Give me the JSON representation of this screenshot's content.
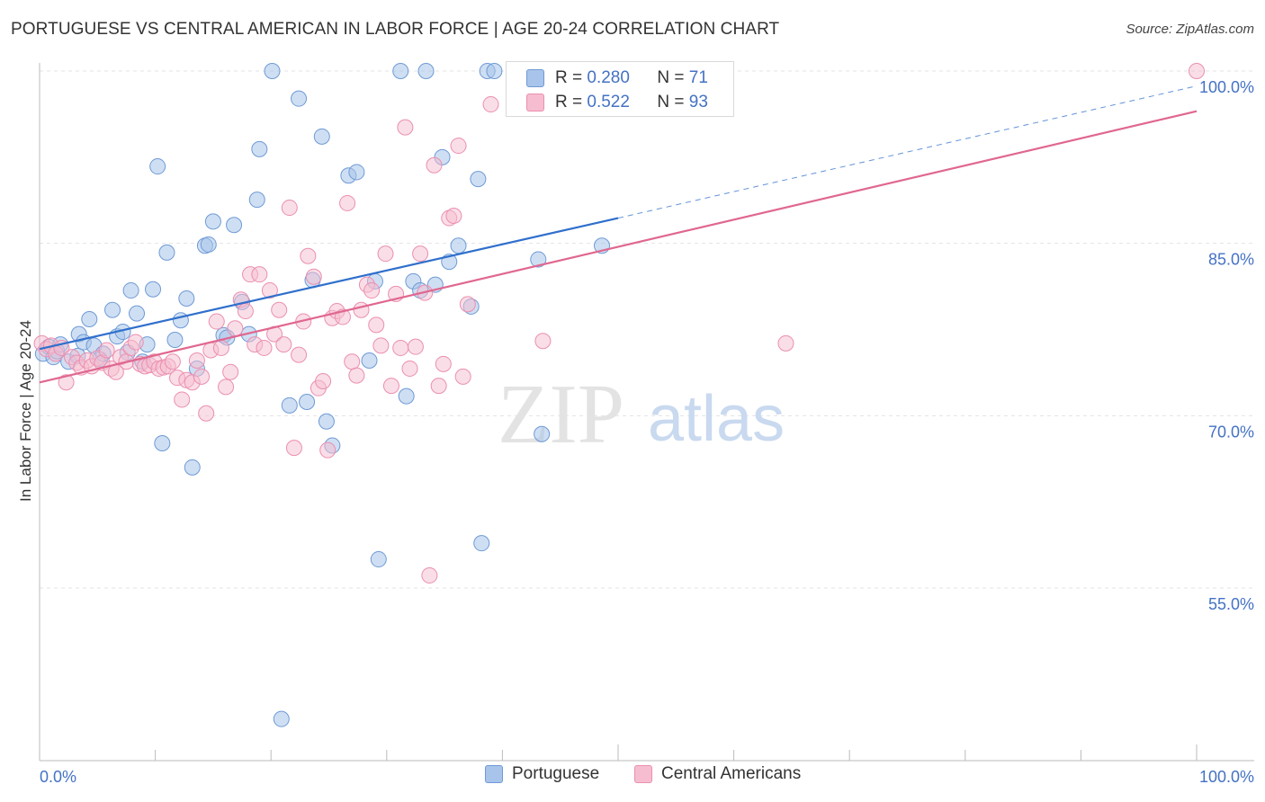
{
  "title": "PORTUGUESE VS CENTRAL AMERICAN IN LABOR FORCE | AGE 20-24 CORRELATION CHART",
  "source": "Source: ZipAtlas.com",
  "watermark": {
    "zip": "ZIP",
    "atlas": "atlas"
  },
  "colors": {
    "blue_fill": "#a8c4ea",
    "blue_stroke": "#6f9ad6",
    "blue_line": "#2f6fcc",
    "pink_fill": "#f6bdd0",
    "pink_stroke": "#eb8fb0",
    "pink_line": "#e0678f",
    "tick_label": "#4472c4",
    "grid": "#e3e3e3"
  },
  "legend": {
    "r_label": "R =",
    "n_label": "N =",
    "rows": [
      {
        "series": "Portuguese",
        "r": "0.280",
        "n": "71"
      },
      {
        "series": "Central Americans",
        "r": "0.522",
        "n": "93"
      }
    ]
  },
  "chart_data": {
    "type": "scatter",
    "title": "PORTUGUESE VS CENTRAL AMERICAN IN LABOR FORCE | AGE 20-24 CORRELATION CHART",
    "xlabel": "",
    "ylabel": "In Labor Force | Age 20-24",
    "xlim": [
      0,
      100
    ],
    "ylim": [
      43.5,
      102
    ],
    "x_tick_labels": [
      {
        "value": 0,
        "label": "0.0%"
      },
      {
        "value": 100,
        "label": "100.0%"
      }
    ],
    "y_ticks": [
      {
        "value": 100,
        "label": "100.0%"
      },
      {
        "value": 85,
        "label": "85.0%"
      },
      {
        "value": 70,
        "label": "70.0%"
      },
      {
        "value": 55,
        "label": "55.0%"
      }
    ],
    "grid": true,
    "legend_position": "top-center",
    "series": [
      {
        "name": "Portuguese",
        "color": "#a8c4ea",
        "trend": {
          "x": [
            0,
            50,
            100
          ],
          "y": [
            75.8,
            87.2,
            98.7
          ],
          "solid_until": 50
        },
        "points": [
          [
            0.3,
            75.4
          ],
          [
            0.8,
            76.0
          ],
          [
            1.2,
            75.1
          ],
          [
            1.5,
            75.6
          ],
          [
            1.8,
            76.2
          ],
          [
            2.5,
            74.7
          ],
          [
            3.3,
            75.2
          ],
          [
            3.4,
            77.1
          ],
          [
            3.8,
            76.4
          ],
          [
            4.3,
            78.4
          ],
          [
            4.7,
            76.1
          ],
          [
            5.2,
            74.9
          ],
          [
            5.5,
            75.4
          ],
          [
            6.3,
            79.2
          ],
          [
            6.7,
            76.9
          ],
          [
            7.2,
            77.3
          ],
          [
            7.6,
            75.5
          ],
          [
            7.9,
            80.9
          ],
          [
            8.4,
            78.9
          ],
          [
            8.9,
            74.7
          ],
          [
            9.3,
            76.2
          ],
          [
            9.8,
            81.0
          ],
          [
            10.2,
            91.7
          ],
          [
            10.6,
            67.6
          ],
          [
            11.0,
            84.2
          ],
          [
            11.7,
            76.6
          ],
          [
            12.2,
            78.3
          ],
          [
            12.7,
            80.2
          ],
          [
            13.2,
            65.5
          ],
          [
            13.6,
            74.1
          ],
          [
            14.3,
            84.8
          ],
          [
            14.6,
            84.9
          ],
          [
            15.0,
            86.9
          ],
          [
            15.9,
            77.0
          ],
          [
            16.2,
            76.8
          ],
          [
            16.8,
            86.6
          ],
          [
            17.5,
            79.9
          ],
          [
            18.1,
            77.1
          ],
          [
            18.8,
            88.8
          ],
          [
            19.0,
            93.2
          ],
          [
            20.1,
            100.0
          ],
          [
            20.9,
            43.6
          ],
          [
            21.6,
            70.9
          ],
          [
            22.4,
            97.6
          ],
          [
            23.1,
            71.2
          ],
          [
            23.6,
            81.8
          ],
          [
            24.4,
            94.3
          ],
          [
            24.8,
            69.5
          ],
          [
            25.3,
            67.4
          ],
          [
            26.7,
            90.9
          ],
          [
            27.4,
            91.2
          ],
          [
            28.5,
            74.8
          ],
          [
            29.0,
            81.7
          ],
          [
            29.3,
            57.5
          ],
          [
            31.2,
            100.0
          ],
          [
            31.7,
            71.7
          ],
          [
            32.3,
            81.7
          ],
          [
            32.9,
            80.9
          ],
          [
            33.4,
            100.0
          ],
          [
            34.2,
            81.4
          ],
          [
            34.8,
            92.5
          ],
          [
            35.4,
            83.4
          ],
          [
            36.2,
            84.8
          ],
          [
            37.3,
            79.5
          ],
          [
            37.9,
            90.6
          ],
          [
            38.2,
            58.9
          ],
          [
            38.7,
            100.0
          ],
          [
            39.3,
            100.0
          ],
          [
            43.1,
            83.6
          ],
          [
            43.4,
            68.4
          ],
          [
            48.6,
            84.8
          ]
        ]
      },
      {
        "name": "Central Americans",
        "color": "#f6bdd0",
        "trend": {
          "x": [
            0,
            100
          ],
          "y": [
            72.9,
            96.5
          ]
        },
        "points": [
          [
            0.2,
            76.3
          ],
          [
            0.6,
            75.8
          ],
          [
            1.0,
            76.1
          ],
          [
            1.4,
            75.4
          ],
          [
            1.9,
            75.9
          ],
          [
            2.3,
            72.9
          ],
          [
            2.8,
            75.1
          ],
          [
            3.2,
            74.6
          ],
          [
            3.6,
            74.2
          ],
          [
            4.1,
            74.8
          ],
          [
            4.5,
            74.3
          ],
          [
            5.0,
            75.0
          ],
          [
            5.4,
            74.6
          ],
          [
            5.8,
            75.7
          ],
          [
            6.2,
            74.1
          ],
          [
            6.6,
            73.8
          ],
          [
            7.0,
            75.1
          ],
          [
            7.5,
            74.7
          ],
          [
            7.9,
            75.9
          ],
          [
            8.3,
            76.4
          ],
          [
            8.7,
            74.5
          ],
          [
            9.1,
            74.3
          ],
          [
            9.5,
            74.4
          ],
          [
            9.9,
            74.7
          ],
          [
            10.3,
            74.1
          ],
          [
            10.7,
            74.2
          ],
          [
            11.1,
            74.3
          ],
          [
            11.5,
            74.7
          ],
          [
            11.9,
            73.3
          ],
          [
            12.3,
            71.4
          ],
          [
            12.7,
            73.1
          ],
          [
            13.2,
            72.9
          ],
          [
            13.6,
            74.8
          ],
          [
            14.0,
            73.4
          ],
          [
            14.4,
            70.2
          ],
          [
            14.8,
            75.7
          ],
          [
            15.3,
            78.2
          ],
          [
            15.7,
            75.9
          ],
          [
            16.1,
            72.5
          ],
          [
            16.5,
            73.8
          ],
          [
            16.9,
            77.6
          ],
          [
            17.4,
            80.1
          ],
          [
            17.8,
            79.1
          ],
          [
            18.2,
            82.3
          ],
          [
            18.6,
            76.2
          ],
          [
            19.0,
            82.3
          ],
          [
            19.4,
            75.9
          ],
          [
            19.9,
            80.9
          ],
          [
            20.3,
            77.1
          ],
          [
            20.7,
            79.2
          ],
          [
            21.1,
            76.2
          ],
          [
            21.6,
            88.1
          ],
          [
            22.0,
            67.2
          ],
          [
            22.4,
            75.3
          ],
          [
            22.8,
            78.2
          ],
          [
            23.2,
            83.9
          ],
          [
            23.7,
            82.1
          ],
          [
            24.1,
            72.4
          ],
          [
            24.5,
            73.0
          ],
          [
            24.9,
            67.0
          ],
          [
            25.3,
            78.5
          ],
          [
            25.7,
            79.1
          ],
          [
            26.2,
            78.6
          ],
          [
            26.6,
            88.5
          ],
          [
            27.0,
            74.7
          ],
          [
            27.4,
            73.5
          ],
          [
            27.8,
            79.2
          ],
          [
            28.3,
            81.4
          ],
          [
            28.7,
            80.9
          ],
          [
            29.1,
            77.9
          ],
          [
            29.5,
            76.1
          ],
          [
            29.9,
            84.1
          ],
          [
            30.4,
            72.6
          ],
          [
            30.8,
            80.6
          ],
          [
            31.2,
            75.9
          ],
          [
            31.6,
            95.1
          ],
          [
            32.0,
            74.1
          ],
          [
            32.5,
            76.0
          ],
          [
            32.9,
            84.1
          ],
          [
            33.3,
            80.7
          ],
          [
            33.7,
            56.1
          ],
          [
            34.1,
            91.8
          ],
          [
            34.5,
            72.6
          ],
          [
            34.9,
            74.5
          ],
          [
            35.4,
            87.2
          ],
          [
            35.8,
            87.4
          ],
          [
            36.2,
            93.5
          ],
          [
            36.6,
            73.4
          ],
          [
            37.0,
            79.7
          ],
          [
            39.0,
            97.1
          ],
          [
            43.5,
            76.5
          ],
          [
            64.5,
            76.3
          ],
          [
            100.0,
            100.0
          ]
        ]
      }
    ]
  }
}
